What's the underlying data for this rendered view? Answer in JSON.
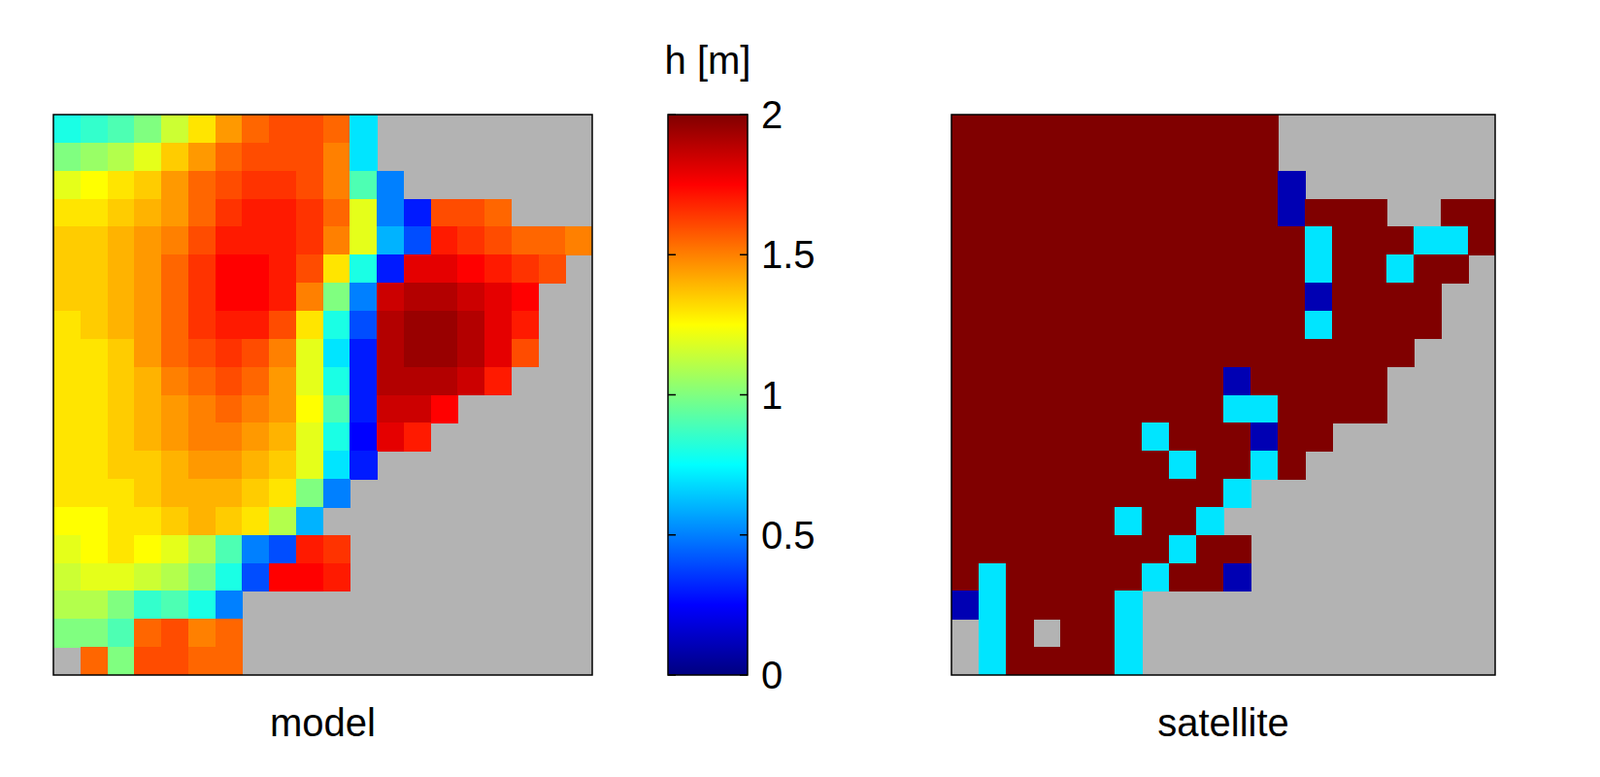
{
  "chart_data": {
    "type": "heatmap",
    "tick_labels": false,
    "colorbar": {
      "label": "h [m]",
      "range": [
        0,
        2
      ],
      "ticks": [
        0,
        0.5,
        1,
        1.5,
        2
      ]
    },
    "panels": [
      {
        "title": "model",
        "cells": [
          [
            0.8,
            0.85,
            0.9,
            1.0,
            1.15,
            1.3,
            1.45,
            1.55,
            1.6,
            1.6,
            1.55,
            0.7,
            null,
            null,
            null,
            null,
            null,
            null,
            null,
            null
          ],
          [
            1.0,
            1.05,
            1.1,
            1.2,
            1.35,
            1.45,
            1.55,
            1.6,
            1.6,
            1.6,
            1.5,
            0.7,
            null,
            null,
            null,
            null,
            null,
            null,
            null,
            null
          ],
          [
            1.2,
            1.25,
            1.3,
            1.35,
            1.45,
            1.55,
            1.6,
            1.65,
            1.65,
            1.6,
            1.5,
            0.9,
            0.5,
            null,
            null,
            null,
            null,
            null,
            null,
            null
          ],
          [
            1.3,
            1.3,
            1.35,
            1.4,
            1.45,
            1.55,
            1.65,
            1.7,
            1.7,
            1.65,
            1.55,
            1.2,
            0.5,
            0.3,
            1.6,
            1.6,
            1.55,
            null,
            null,
            null
          ],
          [
            1.35,
            1.35,
            1.4,
            1.45,
            1.5,
            1.6,
            1.7,
            1.7,
            1.7,
            1.65,
            1.5,
            1.2,
            0.6,
            0.4,
            1.7,
            1.65,
            1.6,
            1.55,
            1.55,
            1.5
          ],
          [
            1.35,
            1.35,
            1.4,
            1.45,
            1.55,
            1.65,
            1.75,
            1.75,
            1.7,
            1.6,
            1.3,
            0.8,
            0.3,
            1.8,
            1.8,
            1.75,
            1.7,
            1.65,
            1.6,
            null
          ],
          [
            1.35,
            1.35,
            1.4,
            1.45,
            1.55,
            1.65,
            1.75,
            1.75,
            1.7,
            1.5,
            1.0,
            0.5,
            1.85,
            1.9,
            1.9,
            1.85,
            1.8,
            1.75,
            null,
            null
          ],
          [
            1.3,
            1.35,
            1.4,
            1.45,
            1.55,
            1.65,
            1.7,
            1.7,
            1.6,
            1.3,
            0.8,
            0.4,
            1.9,
            1.95,
            1.95,
            1.9,
            1.8,
            1.7,
            null,
            null
          ],
          [
            1.3,
            1.3,
            1.35,
            1.45,
            1.55,
            1.6,
            1.65,
            1.6,
            1.5,
            1.2,
            0.7,
            0.3,
            1.9,
            1.95,
            1.95,
            1.9,
            1.8,
            1.6,
            null,
            null
          ],
          [
            1.3,
            1.3,
            1.35,
            1.4,
            1.5,
            1.55,
            1.6,
            1.55,
            1.45,
            1.2,
            0.8,
            0.3,
            1.9,
            1.9,
            1.9,
            1.85,
            1.7,
            null,
            null,
            null
          ],
          [
            1.3,
            1.3,
            1.35,
            1.4,
            1.45,
            1.5,
            1.55,
            1.5,
            1.45,
            1.25,
            0.9,
            0.3,
            1.85,
            1.85,
            1.75,
            null,
            null,
            null,
            null,
            null
          ],
          [
            1.3,
            1.3,
            1.35,
            1.4,
            1.45,
            1.5,
            1.5,
            1.45,
            1.4,
            1.2,
            0.8,
            0.25,
            1.8,
            1.7,
            null,
            null,
            null,
            null,
            null,
            null
          ],
          [
            1.3,
            1.3,
            1.35,
            1.35,
            1.4,
            1.45,
            1.45,
            1.4,
            1.35,
            1.2,
            0.7,
            0.3,
            null,
            null,
            null,
            null,
            null,
            null,
            null,
            null
          ],
          [
            1.3,
            1.3,
            1.3,
            1.35,
            1.4,
            1.4,
            1.4,
            1.35,
            1.3,
            1.0,
            0.5,
            null,
            null,
            null,
            null,
            null,
            null,
            null,
            null,
            null
          ],
          [
            1.25,
            1.25,
            1.3,
            1.3,
            1.35,
            1.4,
            1.35,
            1.3,
            1.1,
            0.6,
            null,
            null,
            null,
            null,
            null,
            null,
            null,
            null,
            null,
            null
          ],
          [
            1.2,
            1.25,
            1.3,
            1.25,
            1.2,
            1.1,
            0.9,
            0.5,
            0.4,
            1.7,
            1.65,
            null,
            null,
            null,
            null,
            null,
            null,
            null,
            null,
            null
          ],
          [
            1.15,
            1.2,
            1.2,
            1.15,
            1.1,
            1.0,
            0.8,
            0.4,
            1.75,
            1.75,
            1.7,
            null,
            null,
            null,
            null,
            null,
            null,
            null,
            null,
            null
          ],
          [
            1.1,
            1.1,
            1.0,
            0.85,
            0.9,
            0.8,
            0.5,
            null,
            null,
            null,
            null,
            null,
            null,
            null,
            null,
            null,
            null,
            null,
            null,
            null
          ],
          [
            1.0,
            1.0,
            0.9,
            1.55,
            1.6,
            1.5,
            1.55,
            null,
            null,
            null,
            null,
            null,
            null,
            null,
            null,
            null,
            null,
            null,
            null,
            null
          ],
          [
            null,
            1.55,
            1.0,
            1.6,
            1.6,
            1.55,
            1.55,
            null,
            null,
            null,
            null,
            null,
            null,
            null,
            null,
            null,
            null,
            null,
            null,
            null
          ]
        ]
      },
      {
        "title": "satellite",
        "cells": [
          [
            2,
            2,
            2,
            2,
            2,
            2,
            2,
            2,
            2,
            2,
            2,
            2,
            null,
            null,
            null,
            null,
            null,
            null,
            null,
            null
          ],
          [
            2,
            2,
            2,
            2,
            2,
            2,
            2,
            2,
            2,
            2,
            2,
            2,
            null,
            null,
            null,
            null,
            null,
            null,
            null,
            null
          ],
          [
            2,
            2,
            2,
            2,
            2,
            2,
            2,
            2,
            2,
            2,
            2,
            2,
            0.1,
            null,
            null,
            null,
            null,
            null,
            null,
            null
          ],
          [
            2,
            2,
            2,
            2,
            2,
            2,
            2,
            2,
            2,
            2,
            2,
            2,
            0.1,
            2,
            2,
            2,
            null,
            null,
            2,
            2
          ],
          [
            2,
            2,
            2,
            2,
            2,
            2,
            2,
            2,
            2,
            2,
            2,
            2,
            2,
            0.7,
            2,
            2,
            2,
            0.7,
            0.7,
            2
          ],
          [
            2,
            2,
            2,
            2,
            2,
            2,
            2,
            2,
            2,
            2,
            2,
            2,
            2,
            0.7,
            2,
            2,
            0.7,
            2,
            2,
            null
          ],
          [
            2,
            2,
            2,
            2,
            2,
            2,
            2,
            2,
            2,
            2,
            2,
            2,
            2,
            0.1,
            2,
            2,
            2,
            2,
            null,
            null
          ],
          [
            2,
            2,
            2,
            2,
            2,
            2,
            2,
            2,
            2,
            2,
            2,
            2,
            2,
            0.7,
            2,
            2,
            2,
            2,
            null,
            null
          ],
          [
            2,
            2,
            2,
            2,
            2,
            2,
            2,
            2,
            2,
            2,
            2,
            2,
            2,
            2,
            2,
            2,
            2,
            null,
            null,
            null
          ],
          [
            2,
            2,
            2,
            2,
            2,
            2,
            2,
            2,
            2,
            2,
            0.1,
            2,
            2,
            2,
            2,
            2,
            null,
            null,
            null,
            null
          ],
          [
            2,
            2,
            2,
            2,
            2,
            2,
            2,
            2,
            2,
            2,
            0.7,
            0.7,
            2,
            2,
            2,
            2,
            null,
            null,
            null,
            null
          ],
          [
            2,
            2,
            2,
            2,
            2,
            2,
            2,
            0.7,
            2,
            2,
            2,
            0.1,
            2,
            2,
            null,
            null,
            null,
            null,
            null,
            null
          ],
          [
            2,
            2,
            2,
            2,
            2,
            2,
            2,
            2,
            0.7,
            2,
            2,
            0.7,
            2,
            null,
            null,
            null,
            null,
            null,
            null,
            null
          ],
          [
            2,
            2,
            2,
            2,
            2,
            2,
            2,
            2,
            2,
            2,
            0.7,
            null,
            null,
            null,
            null,
            null,
            null,
            null,
            null,
            null
          ],
          [
            2,
            2,
            2,
            2,
            2,
            2,
            0.7,
            2,
            2,
            0.7,
            null,
            null,
            null,
            null,
            null,
            null,
            null,
            null,
            null,
            null
          ],
          [
            2,
            2,
            2,
            2,
            2,
            2,
            2,
            2,
            0.7,
            2,
            2,
            null,
            null,
            null,
            null,
            null,
            null,
            null,
            null,
            null
          ],
          [
            2,
            0.7,
            2,
            2,
            2,
            2,
            2,
            0.7,
            2,
            2,
            0.1,
            null,
            null,
            null,
            null,
            null,
            null,
            null,
            null,
            null
          ],
          [
            0.1,
            0.7,
            2,
            2,
            2,
            2,
            0.7,
            null,
            null,
            null,
            null,
            null,
            null,
            null,
            null,
            null,
            null,
            null,
            null,
            null
          ],
          [
            null,
            0.7,
            2,
            null,
            2,
            2,
            0.7,
            null,
            null,
            null,
            null,
            null,
            null,
            null,
            null,
            null,
            null,
            null,
            null,
            null
          ],
          [
            null,
            0.7,
            2,
            2,
            2,
            2,
            0.7,
            null,
            null,
            null,
            null,
            null,
            null,
            null,
            null,
            null,
            null,
            null,
            null,
            null
          ]
        ]
      }
    ]
  }
}
